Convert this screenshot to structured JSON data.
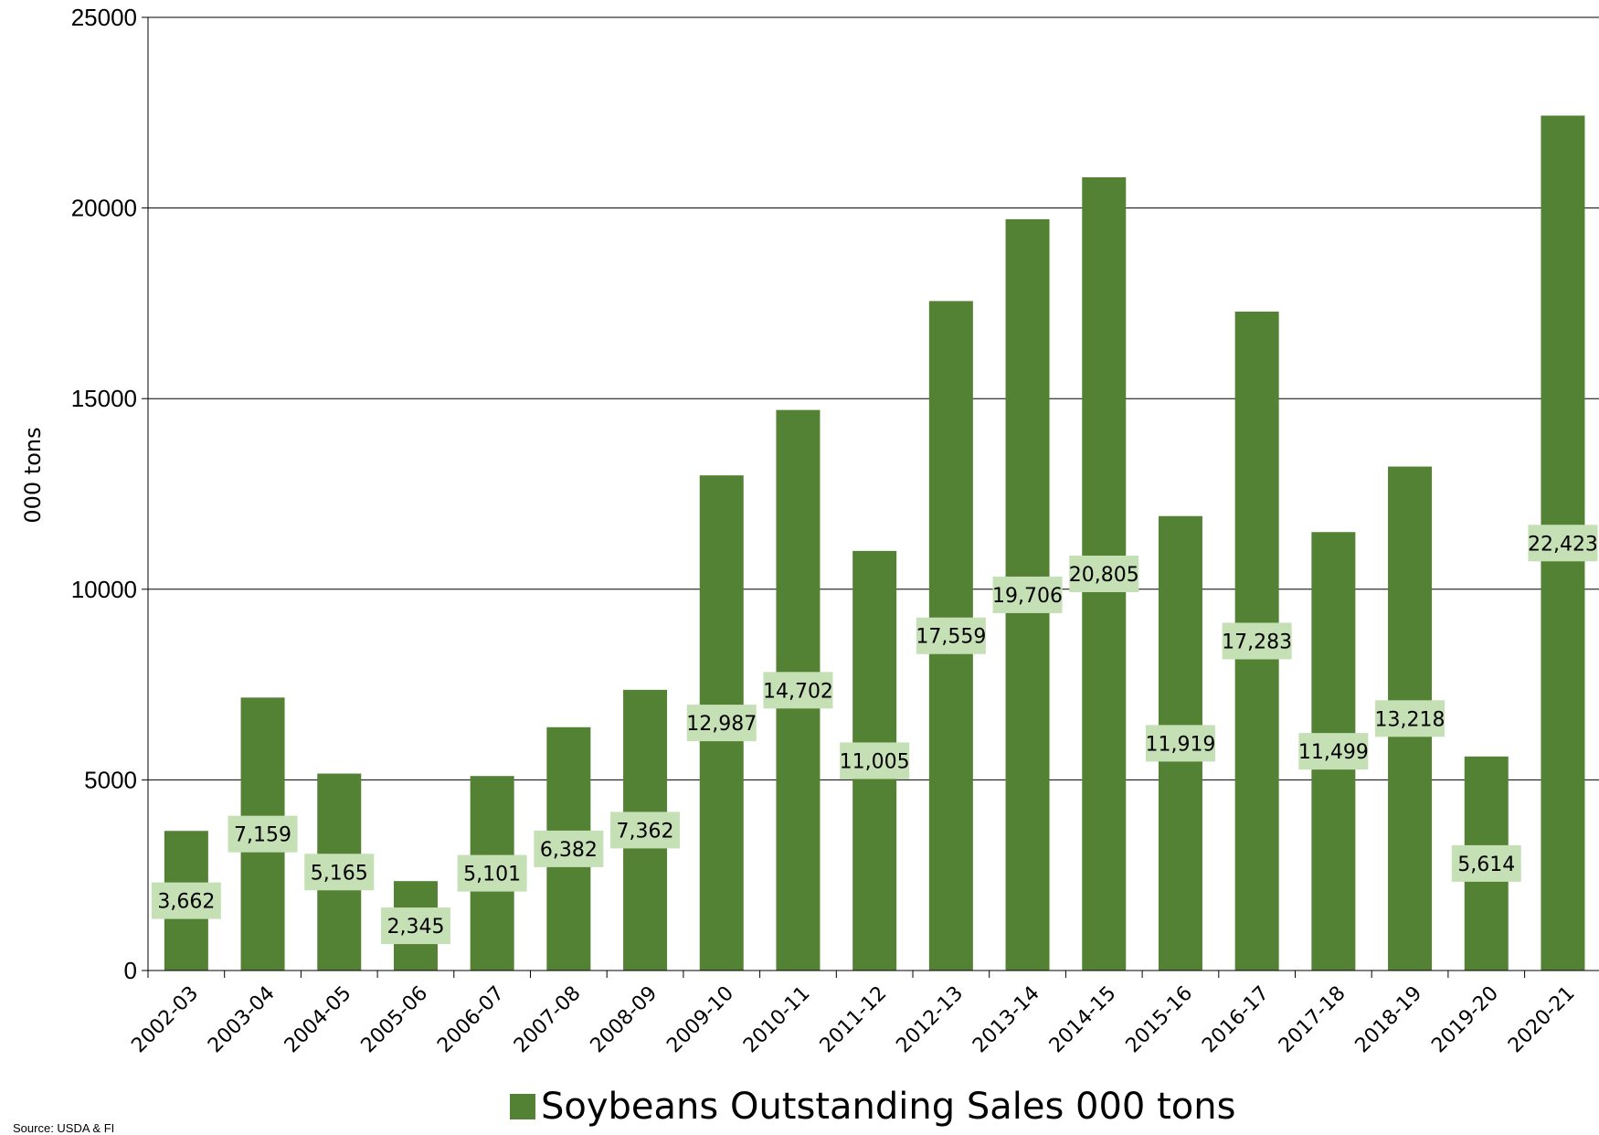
{
  "chart_data": {
    "type": "bar",
    "ylabel": "000 tons",
    "ylim": [
      0,
      25000
    ],
    "yticks": [
      0,
      5000,
      10000,
      15000,
      20000,
      25000
    ],
    "grid": true,
    "legend_position": "bottom",
    "categories": [
      "2002-03",
      "2003-04",
      "2004-05",
      "2005-06",
      "2006-07",
      "2007-08",
      "2008-09",
      "2009-10",
      "2010-11",
      "2011-12",
      "2012-13",
      "2013-14",
      "2014-15",
      "2015-16",
      "2016-17",
      "2017-18",
      "2018-19",
      "2019-20",
      "2020-21"
    ],
    "series": [
      {
        "name": "Soybeans Outstanding Sales 000 tons",
        "values": [
          3662,
          7159,
          5165,
          2345,
          5101,
          6382,
          7362,
          12987,
          14702,
          11005,
          17559,
          19706,
          20805,
          11919,
          17283,
          11499,
          13218,
          5614,
          22423
        ],
        "labels": [
          "3,662",
          "7,159",
          "5,165",
          "2,345",
          "5,101",
          "6,382",
          "7,362",
          "12,987",
          "14,702",
          "11,005",
          "17,559",
          "19,706",
          "20,805",
          "11,919",
          "17,283",
          "11,499",
          "13,218",
          "5,614",
          "22,423"
        ],
        "color": "#548235"
      }
    ],
    "label_box_color": "#c5e0b4"
  },
  "source": "Source: USDA & FI"
}
